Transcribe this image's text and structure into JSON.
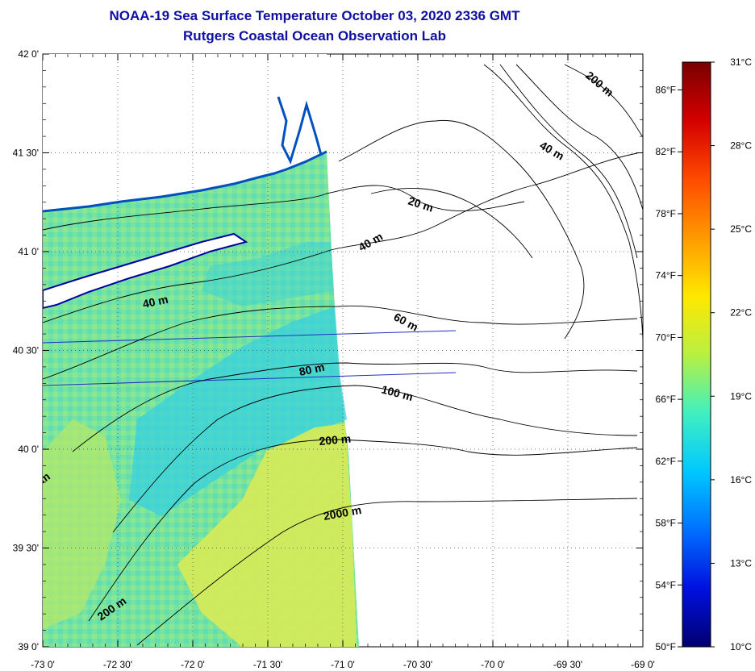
{
  "title": {
    "line1": "NOAA-19 Sea Surface Temperature October 03, 2020 2336 GMT",
    "line2": "Rutgers Coastal Ocean Observation Lab"
  },
  "axes": {
    "x_ticks": [
      "-73 0'",
      "-72 30'",
      "-72 0'",
      "-71 30'",
      "-71 0'",
      "-70 30'",
      "-70 0'",
      "-69 30'",
      "-69 0'"
    ],
    "y_ticks": [
      "42 0'",
      "41 30'",
      "41 0'",
      "40 30'",
      "40 0'",
      "39 30'",
      "39 0'"
    ]
  },
  "colorbar": {
    "celsius": [
      "31°C",
      "28°C",
      "25°C",
      "22°C",
      "19°C",
      "16°C",
      "13°C",
      "10°C"
    ],
    "fahrenheit": [
      "86°F",
      "82°F",
      "78°F",
      "74°F",
      "70°F",
      "66°F",
      "62°F",
      "58°F",
      "54°F",
      "50°F"
    ],
    "colors": [
      "#7a0000",
      "#d40000",
      "#ff4a00",
      "#ff9a00",
      "#ffe800",
      "#b8f040",
      "#40f0c0",
      "#00c8ff",
      "#0070ff",
      "#0010e0",
      "#000070"
    ]
  },
  "contour_labels": [
    "200 m",
    "40 m",
    "20 m",
    "40 m",
    "40 m",
    "60 m",
    "80 m",
    "100 m",
    "200 m",
    "2000 m",
    "200 m",
    "m"
  ],
  "colors": {
    "title": "#1010a0",
    "sst_main": "#6ee0a8",
    "sst_warm": "#d8ec50",
    "sst_cool": "#30c8e8",
    "land": "#ffffff"
  }
}
